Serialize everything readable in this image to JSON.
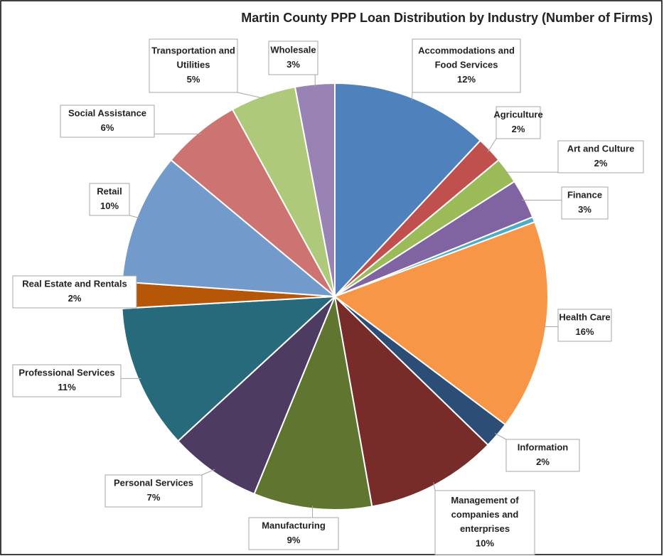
{
  "chart_data": {
    "type": "pie",
    "title": "Martin  County PPP Loan Distribution by Industry (Number of Firms)",
    "categories": [
      "Accommodations and Food Services",
      "Agriculture",
      "Art and Culture",
      "Finance",
      null,
      "Health Care",
      "Information",
      "Management of companies and enterprises",
      "Manufacturing",
      "Personal Services",
      "Professional Services",
      "Real Estate and Rentals",
      "Retail",
      "Social Assistance",
      "Transportation and Utilities",
      "Wholesale"
    ],
    "values": [
      12,
      2,
      2,
      3,
      0.4,
      16,
      2,
      10,
      9,
      7,
      11,
      2,
      10,
      6,
      5,
      3
    ],
    "value_labels": [
      "12%",
      "2%",
      "2%",
      "3%",
      null,
      "16%",
      "2%",
      "10%",
      "9%",
      "7%",
      "11%",
      "2%",
      "10%",
      "6%",
      "5%",
      "3%"
    ],
    "colors": [
      "#4f81bd",
      "#c0504d",
      "#9bbb59",
      "#8064a2",
      "#4bacc6",
      "#f79646",
      "#2c4d75",
      "#772c2a",
      "#5f7530",
      "#4d3b62",
      "#276a7c",
      "#b65708",
      "#729aca",
      "#cd7371",
      "#afc97a",
      "#9983b5"
    ]
  }
}
